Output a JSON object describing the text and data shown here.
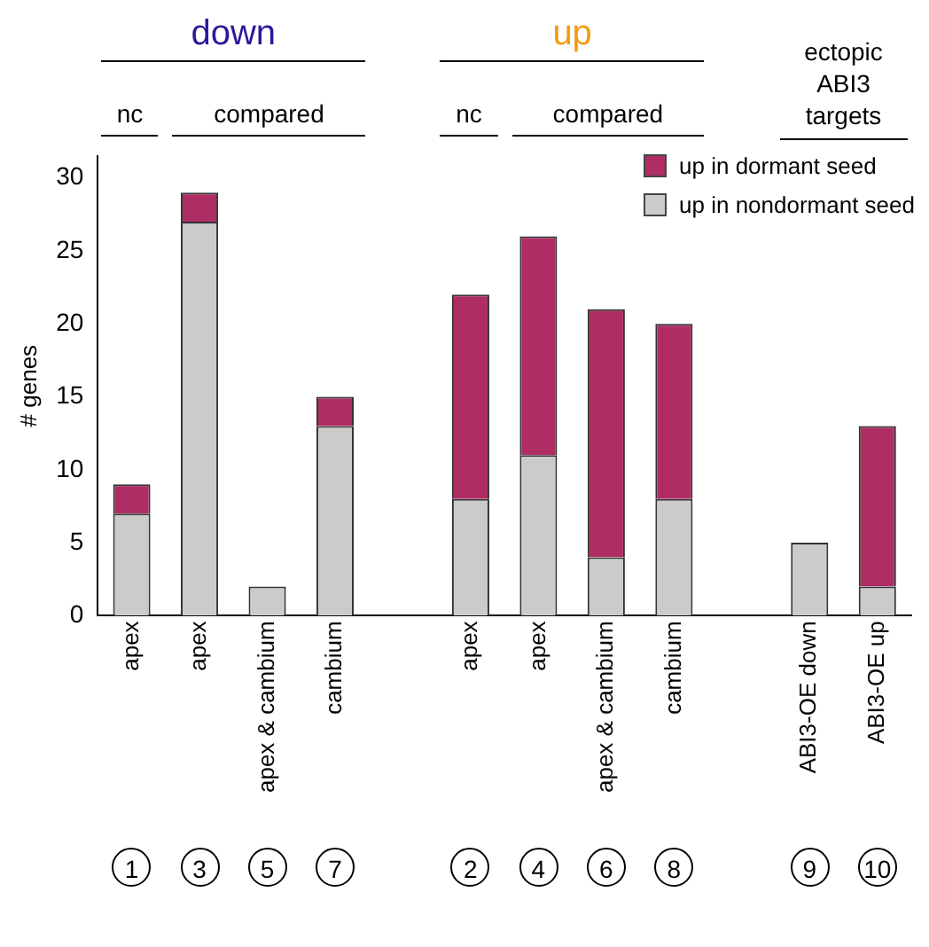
{
  "chart_data": {
    "type": "bar",
    "stacked": true,
    "ylabel": "# genes",
    "categories": [
      "apex",
      "apex",
      "apex & cambium",
      "cambium",
      null,
      "apex",
      "apex",
      "apex & cambium",
      "cambium",
      null,
      "ABI3-OE down",
      "ABI3-OE up"
    ],
    "series": [
      {
        "name": "up in nondormant seed",
        "color": "#cbcbcb",
        "values": [
          7,
          27,
          2,
          13,
          null,
          8,
          11,
          4,
          8,
          null,
          5,
          2
        ]
      },
      {
        "name": "up in dormant seed",
        "color": "#b02d64",
        "values": [
          2,
          2,
          0,
          2,
          null,
          14,
          15,
          17,
          12,
          null,
          0,
          11
        ]
      }
    ],
    "ylim": [
      0,
      31.5
    ],
    "yticks": [
      0,
      5,
      10,
      15,
      20,
      25,
      30
    ],
    "grid": false,
    "legend": "top right",
    "annotations": [
      "down",
      "up",
      "ectopic ABI3 targets",
      "nc",
      "compared",
      "nc",
      "compared",
      "1",
      "3",
      "5",
      "7",
      "2",
      "4",
      "6",
      "8",
      "9",
      "10"
    ]
  }
}
